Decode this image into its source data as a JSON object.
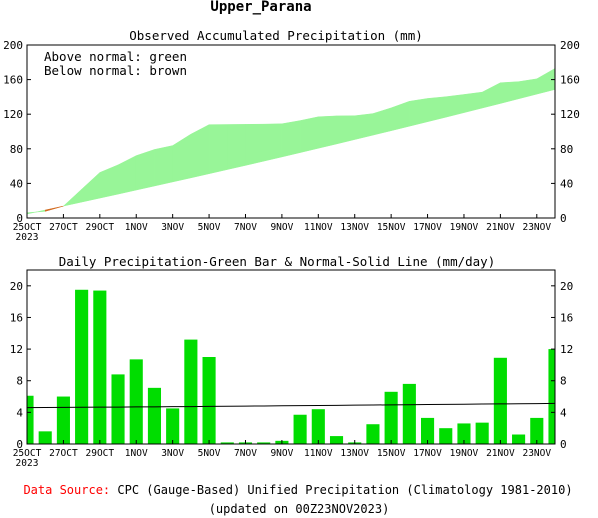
{
  "page_title": "Upper_Parana",
  "footer": {
    "source_label": "Data Source:",
    "source_text": "CPC (Gauge-Based) Unified Precipitation (Climatology 1981-2010)",
    "updated": "(updated on 00Z23NOV2023)"
  },
  "colors": {
    "accent": "#00dd00",
    "band_green": "#98f598",
    "band_brown": "#d2691e",
    "normal_line": "#000000",
    "source_red": "#ff0000"
  },
  "x_tick_labels": [
    "25OCT",
    "27OCT",
    "29OCT",
    "1NOV",
    "3NOV",
    "5NOV",
    "7NOV",
    "9NOV",
    "11NOV",
    "13NOV",
    "15NOV",
    "17NOV",
    "19NOV",
    "21NOV",
    "23NOV"
  ],
  "x_year_label": "2023",
  "chart_data": [
    {
      "type": "area",
      "title": "Observed Accumulated Precipitation (mm)",
      "legend": [
        "Above normal: green",
        "Below normal: brown"
      ],
      "dates": [
        "25OCT",
        "26OCT",
        "27OCT",
        "28OCT",
        "29OCT",
        "30OCT",
        "31OCT",
        "1NOV",
        "2NOV",
        "3NOV",
        "4NOV",
        "5NOV",
        "6NOV",
        "7NOV",
        "8NOV",
        "9NOV",
        "10NOV",
        "11NOV",
        "12NOV",
        "13NOV",
        "14NOV",
        "15NOV",
        "16NOV",
        "17NOV",
        "18NOV",
        "19NOV",
        "20NOV",
        "21NOV",
        "22NOV",
        "23NOV"
      ],
      "series": [
        {
          "name": "Observed",
          "values": [
            6.1,
            7.7,
            13.7,
            33.2,
            52.6,
            61.4,
            72.1,
            79.2,
            83.7,
            96.9,
            107.9,
            108.1,
            108.3,
            108.5,
            108.9,
            112.6,
            117,
            118,
            118.2,
            120.7,
            127.3,
            134.9,
            138.2,
            140.2,
            142.8,
            145.5,
            156.4,
            157.6,
            160.9,
            172.9
          ]
        },
        {
          "name": "Normal",
          "values": [
            4.6,
            9.2,
            13.8,
            18.4,
            23.0,
            27.6,
            32.3,
            37.0,
            41.7,
            46.4,
            51.2,
            56.0,
            60.8,
            65.7,
            70.6,
            75.6,
            80.6,
            85.6,
            90.7,
            95.8,
            100.9,
            106.1,
            111.3,
            116.5,
            121.8,
            127.1,
            132.4,
            137.8,
            143.2,
            148.6
          ]
        }
      ],
      "ylim": [
        0,
        200
      ],
      "yticks": [
        0,
        40,
        80,
        120,
        160,
        200
      ]
    },
    {
      "type": "bar",
      "title": "Daily Precipitation-Green Bar & Normal-Solid Line (mm/day)",
      "dates": [
        "25OCT",
        "26OCT",
        "27OCT",
        "28OCT",
        "29OCT",
        "30OCT",
        "31OCT",
        "1NOV",
        "2NOV",
        "3NOV",
        "4NOV",
        "5NOV",
        "6NOV",
        "7NOV",
        "8NOV",
        "9NOV",
        "10NOV",
        "11NOV",
        "12NOV",
        "13NOV",
        "14NOV",
        "15NOV",
        "16NOV",
        "17NOV",
        "18NOV",
        "19NOV",
        "20NOV",
        "21NOV",
        "22NOV",
        "23NOV"
      ],
      "series": [
        {
          "name": "Daily Precipitation",
          "values": [
            6.1,
            1.6,
            6.0,
            19.5,
            19.4,
            8.8,
            10.7,
            7.1,
            4.5,
            13.2,
            11.0,
            0.2,
            0.2,
            0.2,
            0.4,
            3.7,
            4.4,
            1.0,
            0.2,
            2.5,
            6.6,
            7.6,
            3.3,
            2.0,
            2.6,
            2.7,
            10.9,
            1.2,
            3.3,
            12.0
          ]
        },
        {
          "name": "Normal",
          "values": [
            4.6,
            4.61,
            4.63,
            4.64,
            4.66,
            4.67,
            4.69,
            4.7,
            4.72,
            4.73,
            4.75,
            4.77,
            4.79,
            4.81,
            4.83,
            4.85,
            4.87,
            4.89,
            4.91,
            4.93,
            4.95,
            4.97,
            4.99,
            5.01,
            5.03,
            5.05,
            5.07,
            5.09,
            5.11,
            5.13
          ]
        }
      ],
      "ylim": [
        0,
        22
      ],
      "yticks": [
        0,
        4,
        8,
        12,
        16,
        20
      ]
    }
  ]
}
